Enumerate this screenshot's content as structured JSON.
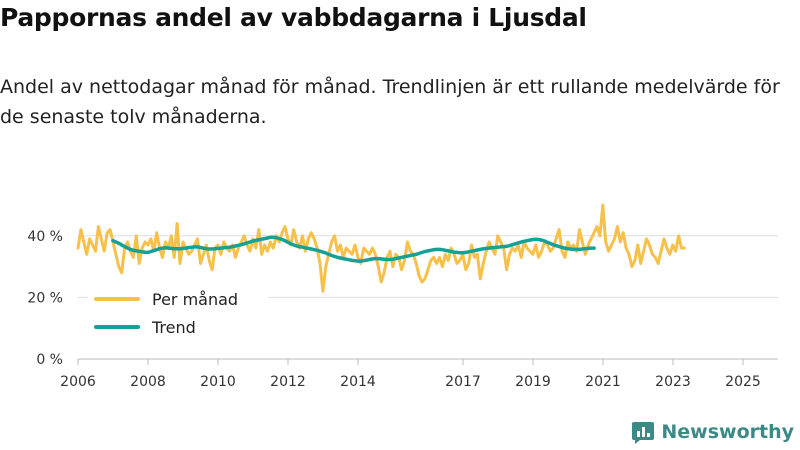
{
  "chart_data": {
    "type": "line",
    "title": "Pappornas andel av vabbdagarna i Ljusdal",
    "subtitle": "Andel av nettodagar månad för månad. Trendlinjen är ett rullande medelvärde för de senaste tolv månaderna.",
    "xlabel": "",
    "ylabel": "",
    "xlim": [
      2006,
      2026
    ],
    "ylim": [
      0,
      50
    ],
    "x_tick_labels": [
      "2006",
      "2008",
      "2010",
      "2012",
      "2014",
      "2017",
      "2019",
      "2021",
      "2023",
      "2025"
    ],
    "x_tick_values": [
      2006,
      2008,
      2010,
      2012,
      2014,
      2017,
      2019,
      2021,
      2023,
      2025
    ],
    "y_tick_labels": [
      "0 %",
      "20 %",
      "40 %"
    ],
    "y_tick_values": [
      0,
      20,
      40
    ],
    "grid": true,
    "legend_position": "bottom-left",
    "series": [
      {
        "name": "Per månad",
        "color": "#f7c04a",
        "x_start": 2006.0,
        "x_step": 0.0833,
        "values": [
          36,
          42,
          38,
          34,
          39,
          37,
          35,
          43,
          39,
          35,
          41,
          42,
          38,
          34,
          30,
          28,
          36,
          38,
          35,
          33,
          40,
          31,
          36,
          38,
          37,
          39,
          35,
          41,
          36,
          33,
          38,
          36,
          40,
          33,
          44,
          31,
          38,
          36,
          34,
          35,
          37,
          39,
          31,
          34,
          37,
          32,
          29,
          36,
          37,
          34,
          38,
          36,
          35,
          37,
          33,
          36,
          38,
          40,
          37,
          35,
          39,
          36,
          42,
          34,
          37,
          35,
          38,
          36,
          40,
          38,
          41,
          43,
          39,
          37,
          42,
          38,
          36,
          40,
          35,
          39,
          41,
          39,
          36,
          31,
          22,
          30,
          34,
          38,
          40,
          35,
          37,
          33,
          36,
          35,
          34,
          37,
          33,
          31,
          36,
          35,
          34,
          36,
          34,
          30,
          25,
          28,
          33,
          35,
          30,
          34,
          33,
          29,
          32,
          38,
          35,
          34,
          31,
          27,
          25,
          26,
          29,
          32,
          33,
          31,
          33,
          30,
          34,
          32,
          36,
          34,
          31,
          32,
          34,
          29,
          31,
          37,
          33,
          34,
          26,
          31,
          35,
          38,
          36,
          34,
          40,
          38,
          36,
          29,
          34,
          36,
          35,
          37,
          33,
          38,
          36,
          35,
          34,
          37,
          33,
          35,
          38,
          37,
          35,
          36,
          39,
          42,
          35,
          33,
          38,
          36,
          37,
          35,
          42,
          38,
          34,
          37,
          39,
          41,
          43,
          40,
          50,
          38,
          35,
          37,
          39,
          43,
          38,
          41,
          36,
          34,
          30,
          32,
          37,
          31,
          35,
          39,
          37,
          34,
          33,
          31,
          35,
          39,
          36,
          34,
          37,
          35,
          40,
          36,
          36
        ]
      },
      {
        "name": "Trend",
        "color": "#15a196",
        "x_start": 2007.0,
        "x_step": 0.0833,
        "values": [
          38.4,
          38.0,
          37.6,
          37.0,
          36.5,
          36.0,
          35.6,
          35.3,
          35.1,
          35.0,
          34.8,
          34.6,
          34.6,
          34.9,
          35.2,
          35.5,
          35.8,
          36.0,
          36.1,
          36.0,
          35.9,
          35.8,
          35.8,
          35.8,
          35.9,
          36.0,
          36.2,
          36.3,
          36.4,
          36.4,
          36.2,
          36.0,
          35.8,
          35.7,
          35.7,
          35.8,
          35.9,
          36.0,
          36.1,
          36.2,
          36.3,
          36.5,
          36.7,
          36.9,
          37.1,
          37.4,
          37.7,
          38.0,
          38.3,
          38.5,
          38.7,
          38.9,
          39.1,
          39.3,
          39.5,
          39.5,
          39.4,
          39.1,
          38.8,
          38.4,
          37.9,
          37.4,
          37.0,
          36.7,
          36.5,
          36.3,
          36.1,
          35.9,
          35.7,
          35.5,
          35.3,
          35.0,
          34.7,
          34.4,
          34.0,
          33.6,
          33.3,
          33.0,
          32.8,
          32.6,
          32.4,
          32.2,
          32.0,
          31.9,
          31.8,
          31.8,
          31.9,
          32.1,
          32.3,
          32.5,
          32.6,
          32.6,
          32.5,
          32.4,
          32.3,
          32.3,
          32.4,
          32.6,
          32.8,
          33.0,
          33.2,
          33.4,
          33.6,
          33.8,
          34.0,
          34.3,
          34.6,
          34.9,
          35.1,
          35.3,
          35.5,
          35.6,
          35.6,
          35.5,
          35.3,
          35.1,
          34.9,
          34.7,
          34.6,
          34.5,
          34.5,
          34.6,
          34.8,
          35.0,
          35.2,
          35.4,
          35.6,
          35.8,
          35.9,
          36.0,
          36.1,
          36.2,
          36.3,
          36.4,
          36.5,
          36.6,
          36.8,
          37.1,
          37.4,
          37.7,
          38.0,
          38.2,
          38.4,
          38.6,
          38.8,
          38.9,
          38.8,
          38.6,
          38.3,
          37.9,
          37.5,
          37.1,
          36.8,
          36.5,
          36.2,
          36.0,
          35.8,
          35.7,
          35.6,
          35.6,
          35.6,
          35.7,
          35.8,
          35.9,
          36.0,
          36.0
        ]
      }
    ]
  },
  "branding": {
    "name": "Newsworthy",
    "logo": "bar-chart-icon"
  }
}
